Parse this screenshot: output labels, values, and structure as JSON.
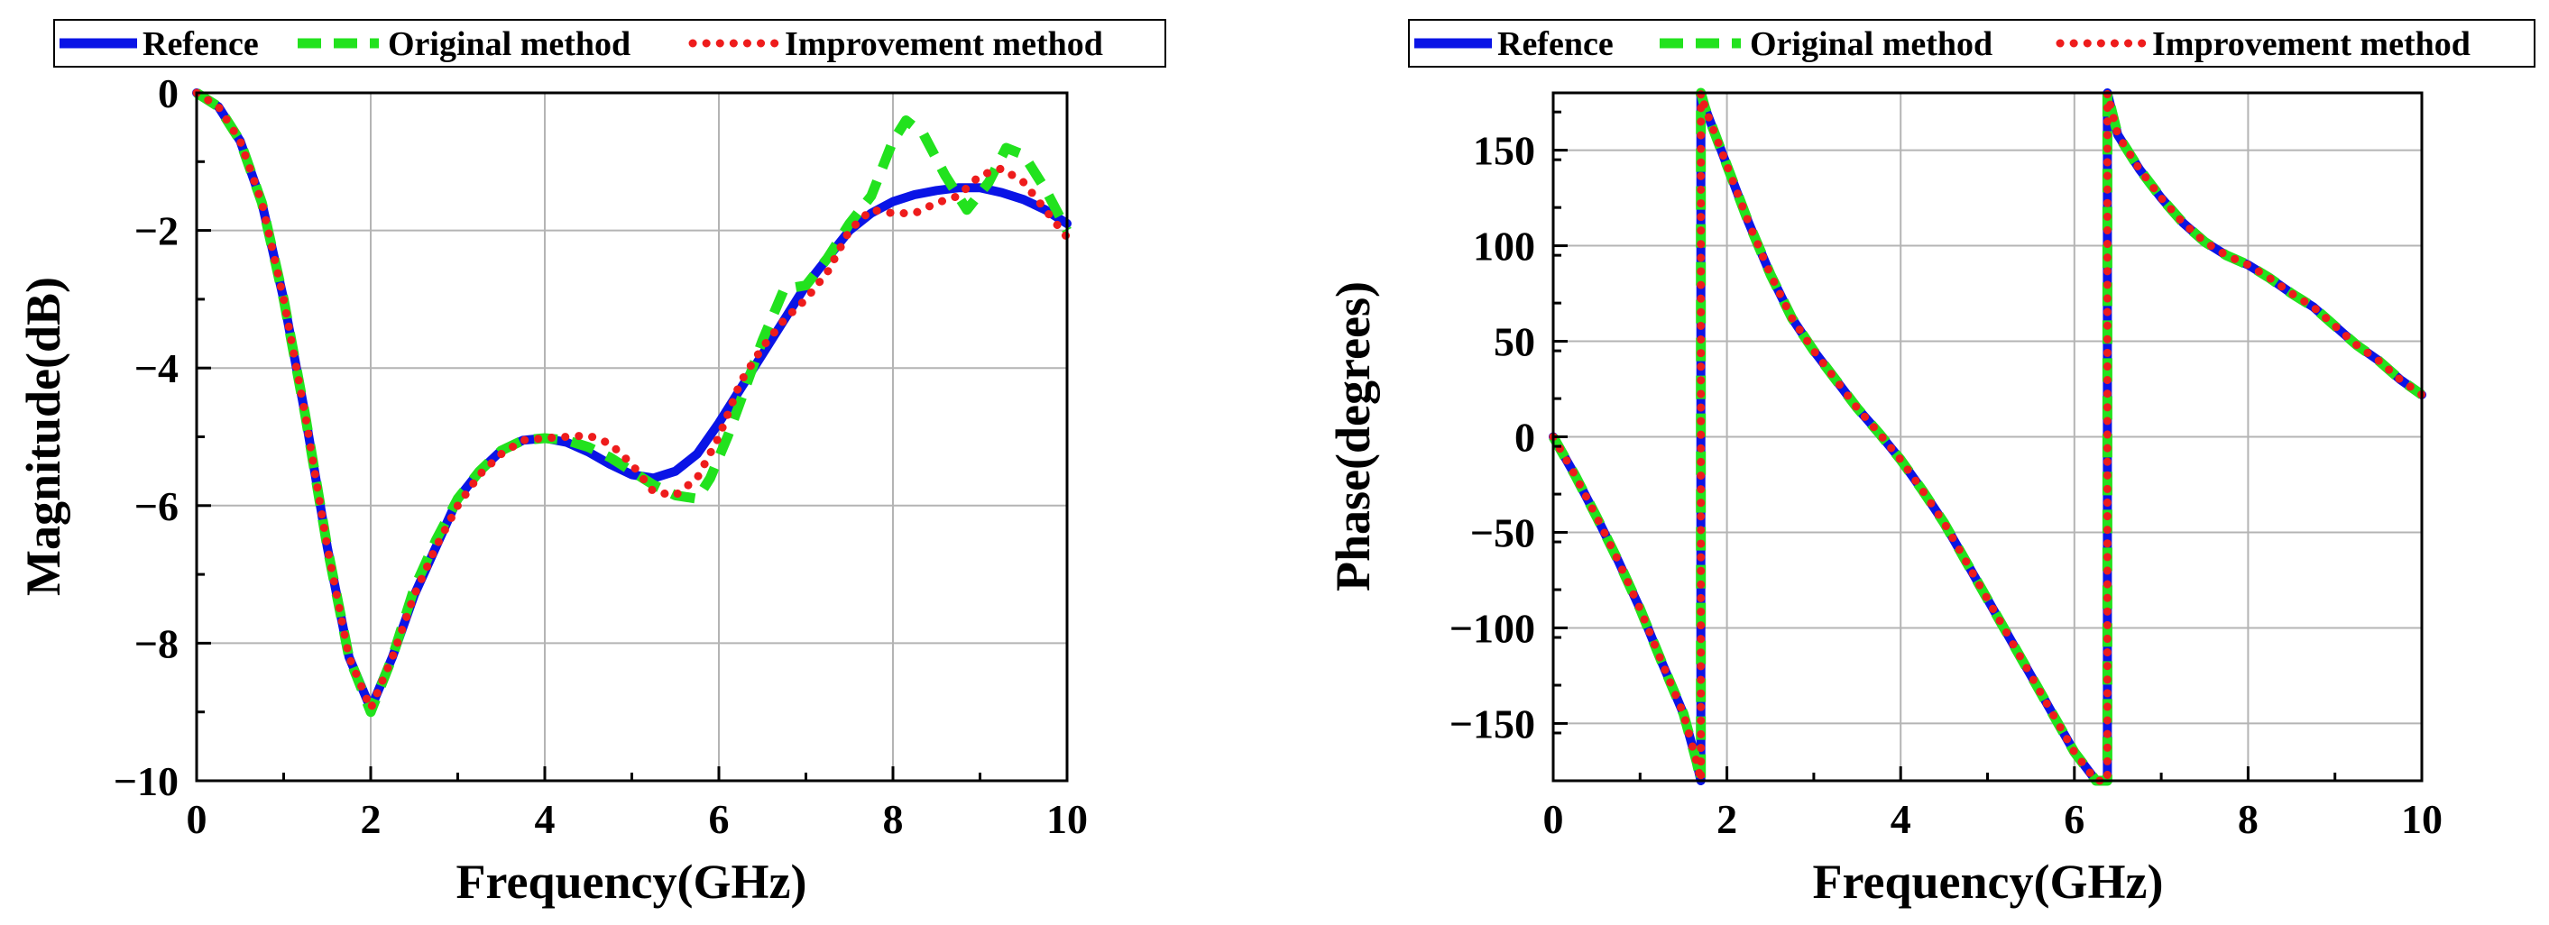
{
  "chart_data": [
    {
      "type": "line",
      "xlabel": "Frequency(GHz)",
      "ylabel": "Magnitude(dB)",
      "xlim": [
        0,
        10
      ],
      "ylim": [
        -10,
        0
      ],
      "xticks": [
        0,
        2,
        4,
        6,
        8,
        10
      ],
      "yticks": [
        0,
        -2,
        -4,
        -6,
        -8,
        -10
      ],
      "xtick_labels": [
        "0",
        "2",
        "4",
        "6",
        "8",
        "10"
      ],
      "ytick_labels": [
        "0",
        "−2",
        "−4",
        "−6",
        "−8",
        "−10"
      ],
      "grid": true,
      "legend": [
        "Refence",
        "Original method",
        "Improvement method"
      ],
      "legend_position": "top",
      "series": [
        {
          "name": "Refence",
          "color": "#0a14e6",
          "style": "solid",
          "x": [
            0,
            0.25,
            0.5,
            0.75,
            1,
            1.25,
            1.5,
            1.75,
            2,
            2.25,
            2.5,
            2.75,
            3,
            3.25,
            3.5,
            3.75,
            4,
            4.25,
            4.5,
            4.75,
            5,
            5.25,
            5.5,
            5.75,
            6,
            6.25,
            6.5,
            6.75,
            7,
            7.25,
            7.5,
            7.75,
            8,
            8.25,
            8.5,
            8.75,
            9,
            9.25,
            9.5,
            9.75,
            10
          ],
          "y": [
            0,
            -0.2,
            -0.7,
            -1.6,
            -3.0,
            -4.7,
            -6.6,
            -8.2,
            -8.95,
            -8.2,
            -7.3,
            -6.6,
            -5.9,
            -5.5,
            -5.2,
            -5.05,
            -5.02,
            -5.08,
            -5.22,
            -5.4,
            -5.55,
            -5.6,
            -5.5,
            -5.25,
            -4.8,
            -4.3,
            -3.8,
            -3.3,
            -2.8,
            -2.4,
            -2.0,
            -1.75,
            -1.58,
            -1.48,
            -1.42,
            -1.38,
            -1.38,
            -1.45,
            -1.55,
            -1.7,
            -1.9
          ]
        },
        {
          "name": "Original method",
          "color": "#22e21e",
          "style": "dashed",
          "x": [
            0,
            0.25,
            0.5,
            0.75,
            1,
            1.25,
            1.5,
            1.75,
            2,
            2.25,
            2.5,
            2.75,
            3,
            3.25,
            3.5,
            3.75,
            4,
            4.25,
            4.5,
            4.75,
            5,
            5.25,
            5.5,
            5.75,
            5.9,
            6.1,
            6.3,
            6.5,
            6.75,
            7,
            7.25,
            7.5,
            7.75,
            8,
            8.15,
            8.35,
            8.6,
            8.85,
            9.1,
            9.3,
            9.5,
            9.75,
            10
          ],
          "y": [
            0,
            -0.2,
            -0.7,
            -1.6,
            -3.0,
            -4.7,
            -6.6,
            -8.2,
            -9.0,
            -8.2,
            -7.2,
            -6.5,
            -5.9,
            -5.5,
            -5.2,
            -5.05,
            -5.02,
            -5.05,
            -5.15,
            -5.3,
            -5.5,
            -5.7,
            -5.85,
            -5.9,
            -5.6,
            -5.0,
            -4.3,
            -3.6,
            -2.85,
            -2.8,
            -2.4,
            -1.9,
            -1.5,
            -0.7,
            -0.4,
            -0.6,
            -1.2,
            -1.7,
            -1.3,
            -0.8,
            -0.9,
            -1.4,
            -2.0
          ]
        },
        {
          "name": "Improvement method",
          "color": "#ee1c1c",
          "style": "dotted",
          "x": [
            0,
            0.25,
            0.5,
            0.75,
            1,
            1.25,
            1.5,
            1.75,
            2,
            2.25,
            2.5,
            2.75,
            3,
            3.25,
            3.5,
            3.75,
            4,
            4.25,
            4.5,
            4.75,
            5,
            5.25,
            5.5,
            5.75,
            6,
            6.25,
            6.5,
            6.75,
            7,
            7.25,
            7.5,
            7.75,
            8,
            8.25,
            8.5,
            8.75,
            9,
            9.25,
            9.5,
            9.75,
            10
          ],
          "y": [
            0,
            -0.2,
            -0.7,
            -1.6,
            -3.0,
            -4.7,
            -6.6,
            -8.2,
            -8.95,
            -8.2,
            -7.3,
            -6.6,
            -6.0,
            -5.55,
            -5.25,
            -5.05,
            -5.02,
            -5.0,
            -4.98,
            -5.1,
            -5.4,
            -5.8,
            -5.85,
            -5.6,
            -5.0,
            -4.2,
            -3.7,
            -3.3,
            -3.0,
            -2.6,
            -2.0,
            -1.7,
            -1.75,
            -1.75,
            -1.6,
            -1.5,
            -1.2,
            -1.1,
            -1.3,
            -1.7,
            -2.1
          ]
        }
      ]
    },
    {
      "type": "line",
      "xlabel": "Frequency(GHz)",
      "ylabel": "Phase(degrees)",
      "xlim": [
        0,
        10
      ],
      "ylim": [
        -180,
        180
      ],
      "xticks": [
        0,
        2,
        4,
        6,
        8,
        10
      ],
      "yticks": [
        150,
        100,
        50,
        0,
        -50,
        -100,
        -150
      ],
      "xtick_labels": [
        "0",
        "2",
        "4",
        "6",
        "8",
        "10"
      ],
      "ytick_labels": [
        "150",
        "100",
        "50",
        "0",
        "−50",
        "−100",
        "−150"
      ],
      "grid": true,
      "legend": [
        "Refence",
        "Original method",
        "Improvement method"
      ],
      "legend_position": "top",
      "series": [
        {
          "name": "Refence",
          "color": "#0a14e6",
          "style": "solid",
          "x": [
            0,
            0.25,
            0.5,
            0.75,
            1,
            1.25,
            1.5,
            1.65,
            1.7,
            1.7,
            1.75,
            2,
            2.25,
            2.5,
            2.75,
            3,
            3.25,
            3.5,
            3.75,
            4,
            4.25,
            4.5,
            4.75,
            5,
            5.25,
            5.5,
            5.75,
            6,
            6.25,
            6.38,
            6.38,
            6.5,
            6.75,
            7,
            7.25,
            7.5,
            7.75,
            8,
            8.25,
            8.5,
            8.75,
            9,
            9.25,
            9.5,
            9.75,
            10
          ],
          "y": [
            0,
            -20,
            -42,
            -65,
            -90,
            -118,
            -145,
            -170,
            -180,
            180,
            172,
            142,
            112,
            85,
            62,
            45,
            30,
            15,
            2,
            -12,
            -28,
            -45,
            -65,
            -85,
            -105,
            -125,
            -145,
            -165,
            -180,
            -180,
            180,
            158,
            140,
            125,
            112,
            102,
            95,
            90,
            83,
            75,
            68,
            58,
            48,
            40,
            30,
            22
          ]
        },
        {
          "name": "Original method",
          "color": "#22e21e",
          "style": "dashed",
          "x": [
            0,
            0.25,
            0.5,
            0.75,
            1,
            1.25,
            1.5,
            1.65,
            1.7,
            1.7,
            1.75,
            2,
            2.25,
            2.5,
            2.75,
            3,
            3.25,
            3.5,
            3.75,
            4,
            4.25,
            4.5,
            4.75,
            5,
            5.25,
            5.5,
            5.75,
            6,
            6.25,
            6.38,
            6.38,
            6.5,
            6.75,
            7,
            7.25,
            7.5,
            7.75,
            8,
            8.25,
            8.5,
            8.75,
            9,
            9.25,
            9.5,
            9.75,
            10
          ],
          "y": [
            0,
            -20,
            -42,
            -65,
            -90,
            -118,
            -145,
            -170,
            -180,
            180,
            172,
            142,
            112,
            85,
            62,
            45,
            30,
            15,
            2,
            -12,
            -28,
            -45,
            -65,
            -85,
            -105,
            -125,
            -145,
            -165,
            -180,
            -180,
            180,
            158,
            140,
            125,
            112,
            102,
            95,
            90,
            83,
            75,
            68,
            58,
            48,
            40,
            30,
            22
          ]
        },
        {
          "name": "Improvement method",
          "color": "#ee1c1c",
          "style": "dotted",
          "x": [
            0,
            0.25,
            0.5,
            0.75,
            1,
            1.25,
            1.5,
            1.65,
            1.7,
            1.7,
            1.75,
            2,
            2.25,
            2.5,
            2.75,
            3,
            3.25,
            3.5,
            3.75,
            4,
            4.25,
            4.5,
            4.75,
            5,
            5.25,
            5.5,
            5.75,
            6,
            6.25,
            6.38,
            6.38,
            6.5,
            6.75,
            7,
            7.25,
            7.5,
            7.75,
            8,
            8.25,
            8.5,
            8.75,
            9,
            9.25,
            9.5,
            9.75,
            10
          ],
          "y": [
            0,
            -20,
            -42,
            -65,
            -90,
            -118,
            -145,
            -170,
            -180,
            180,
            172,
            142,
            112,
            85,
            62,
            45,
            30,
            15,
            2,
            -12,
            -28,
            -45,
            -65,
            -85,
            -105,
            -125,
            -145,
            -165,
            -180,
            -180,
            180,
            158,
            140,
            125,
            112,
            102,
            95,
            90,
            83,
            75,
            68,
            58,
            48,
            40,
            30,
            22
          ]
        }
      ]
    }
  ]
}
